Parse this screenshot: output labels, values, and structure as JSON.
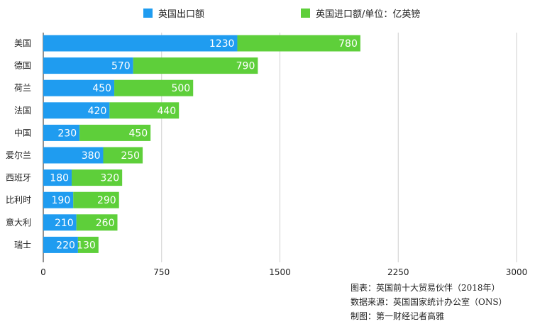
{
  "chart_data": {
    "type": "bar",
    "orientation": "horizontal",
    "stacked": true,
    "categories": [
      "美国",
      "德国",
      "荷兰",
      "法国",
      "中国",
      "爱尔兰",
      "西班牙",
      "比利时",
      "意大利",
      "瑞士"
    ],
    "series": [
      {
        "name": "英国出口额",
        "color": "#1f9cf0",
        "values": [
          1230,
          570,
          450,
          420,
          230,
          380,
          180,
          190,
          210,
          220
        ]
      },
      {
        "name": "英国进口额/单位：亿英镑",
        "color": "#5ecf3a",
        "values": [
          780,
          790,
          500,
          440,
          450,
          250,
          320,
          290,
          260,
          130
        ]
      }
    ],
    "xlim": [
      0,
      3000
    ],
    "xticks": [
      "0",
      "750",
      "1500",
      "2250",
      "3000"
    ],
    "grid": true,
    "legend_position": "top"
  },
  "notes": [
    "图表：英国前十大贸易伙伴（2018年）",
    "数据来源：英国国家统计办公室（ONS）",
    "制图：第一财经记者高雅"
  ]
}
